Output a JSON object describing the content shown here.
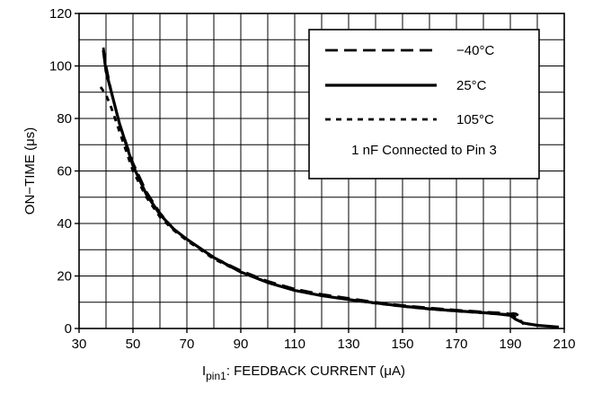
{
  "chart_data": {
    "type": "line",
    "xlabel_prefix": "I",
    "xlabel_sub": "pin1",
    "xlabel_rest": ": FEEDBACK CURRENT (μA)",
    "ylabel": "ON−TIME (μs)",
    "xlim": [
      30,
      210
    ],
    "ylim": [
      0,
      120
    ],
    "x_ticks": [
      "30",
      "50",
      "70",
      "90",
      "110",
      "130",
      "150",
      "170",
      "190",
      "210"
    ],
    "y_ticks": [
      "0",
      "20",
      "40",
      "60",
      "80",
      "100",
      "120"
    ],
    "grid": true,
    "legend_position": "top-right",
    "legend_note": "1 nF Connected to Pin 3",
    "series": [
      {
        "name": "−40°C",
        "style": "dashed",
        "x": [
          39,
          40,
          42,
          45,
          50,
          55,
          60,
          65,
          70,
          80,
          90,
          100,
          110,
          120,
          130,
          140,
          150,
          160,
          170,
          180,
          185,
          188,
          190,
          191,
          192,
          193
        ],
        "y": [
          107,
          100,
          90,
          78,
          63,
          52,
          44,
          38,
          34,
          27,
          22,
          18,
          15,
          13,
          11.5,
          10,
          8.8,
          7.8,
          7,
          6.3,
          6,
          5.8,
          5.5,
          5.7,
          5.6,
          5
        ]
      },
      {
        "name": "25°C",
        "style": "solid",
        "x": [
          39,
          40,
          42,
          45,
          50,
          55,
          60,
          65,
          70,
          80,
          90,
          100,
          110,
          120,
          130,
          140,
          150,
          160,
          170,
          180,
          185,
          190,
          192,
          195,
          200,
          205,
          208
        ],
        "y": [
          106,
          98,
          90,
          78,
          62,
          51,
          43.5,
          38,
          34,
          27,
          21.5,
          17.5,
          14.5,
          12.5,
          11,
          9.7,
          8.5,
          7.5,
          6.7,
          6,
          5.6,
          5,
          3.5,
          2,
          1.2,
          0.8,
          0.5
        ]
      },
      {
        "name": "105°C",
        "style": "dotted",
        "x": [
          38,
          40,
          42,
          45,
          50,
          55,
          60,
          65,
          70,
          80,
          90,
          100,
          110,
          120,
          130,
          140,
          150,
          160,
          170,
          180,
          185,
          190,
          193,
          195
        ],
        "y": [
          92,
          89,
          84,
          75,
          60,
          50,
          42.5,
          37.5,
          33.5,
          26.5,
          21.5,
          17.5,
          14.5,
          12.5,
          11,
          9.6,
          8.4,
          7.4,
          6.6,
          5.9,
          5.5,
          5.4,
          4,
          1.5
        ]
      }
    ]
  }
}
